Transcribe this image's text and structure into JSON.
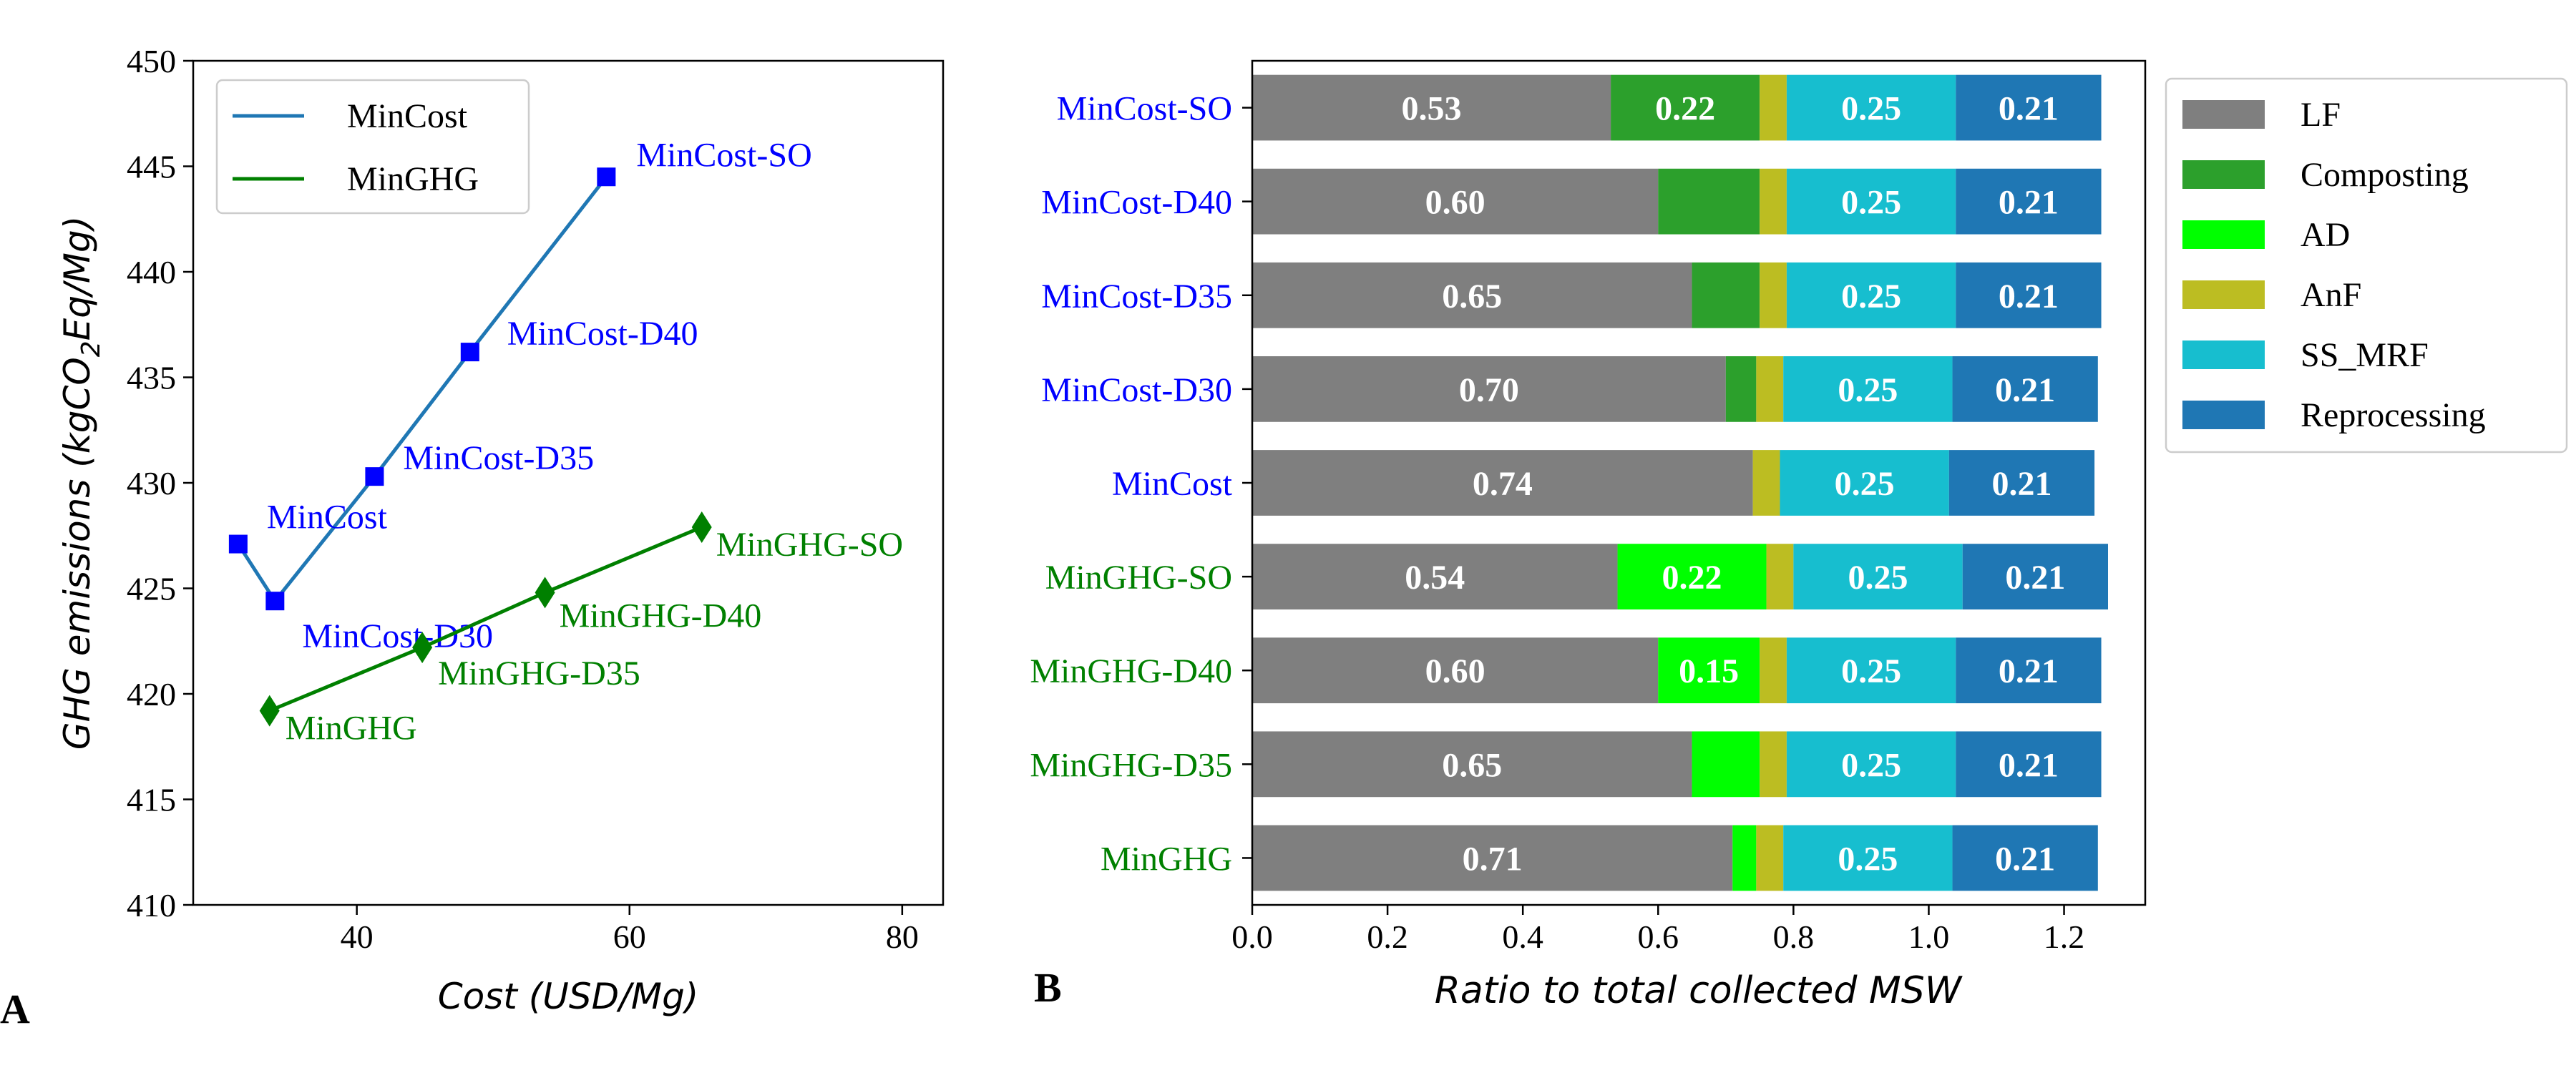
{
  "panel_labels": {
    "a": "A",
    "b": "B"
  },
  "chart_data": [
    {
      "type": "scatter",
      "panel": "A",
      "title": "",
      "xlabel": "Cost (USD/Mg)",
      "ylabel": "GHG emissions (kgCO2Eq/Mg)",
      "ylabel_parts": {
        "pre": "GHG emissions (kgCO",
        "sub": "2",
        "post": "Eq/Mg)"
      },
      "xlim": [
        28,
        83
      ],
      "ylim": [
        410,
        450
      ],
      "xticks": [
        "40",
        "60",
        "80"
      ],
      "xtick_values": [
        40,
        60,
        80
      ],
      "yticks": [
        "410",
        "415",
        "420",
        "425",
        "430",
        "435",
        "440",
        "445",
        "450"
      ],
      "ytick_values": [
        410,
        415,
        420,
        425,
        430,
        435,
        440,
        445,
        450
      ],
      "grid": false,
      "legend_position": "upper-left",
      "series": [
        {
          "name": "MinCost",
          "color": "#1f77b4",
          "label_color": "#0000ff",
          "marker": "square",
          "marker_color": "#0000ff",
          "points": [
            {
              "x": 31.3,
              "y": 427.1,
              "label": "MinCost"
            },
            {
              "x": 34.0,
              "y": 424.4,
              "label": "MinCost-D30"
            },
            {
              "x": 41.3,
              "y": 430.3,
              "label": "MinCost-D35"
            },
            {
              "x": 48.3,
              "y": 436.2,
              "label": "MinCost-D40"
            },
            {
              "x": 58.3,
              "y": 444.5,
              "label": "MinCost-SO"
            }
          ]
        },
        {
          "name": "MinGHG",
          "color": "#008000",
          "label_color": "#008000",
          "marker": "diamond",
          "marker_color": "#008000",
          "points": [
            {
              "x": 33.6,
              "y": 419.2,
              "label": "MinGHG"
            },
            {
              "x": 44.8,
              "y": 422.2,
              "label": "MinGHG-D35"
            },
            {
              "x": 53.8,
              "y": 424.8,
              "label": "MinGHG-D40"
            },
            {
              "x": 65.3,
              "y": 427.9,
              "label": "MinGHG-SO"
            }
          ]
        }
      ]
    },
    {
      "type": "bar",
      "orientation": "horizontal",
      "stacked": true,
      "panel": "B",
      "title": "",
      "xlabel": "Ratio to total collected MSW",
      "xlim": [
        0,
        1.32
      ],
      "xticks": [
        "0.0",
        "0.2",
        "0.4",
        "0.6",
        "0.8",
        "1.0",
        "1.2"
      ],
      "xtick_values": [
        0,
        0.2,
        0.4,
        0.6,
        0.8,
        1.0,
        1.2
      ],
      "grid": false,
      "legend_position": "outside-right",
      "categories": [
        "MinCost-SO",
        "MinCost-D40",
        "MinCost-D35",
        "MinCost-D30",
        "MinCost",
        "MinGHG-SO",
        "MinGHG-D40",
        "MinGHG-D35",
        "MinGHG"
      ],
      "category_colors": [
        "#0000ff",
        "#0000ff",
        "#0000ff",
        "#0000ff",
        "#0000ff",
        "#008000",
        "#008000",
        "#008000",
        "#008000"
      ],
      "series": [
        {
          "name": "LF",
          "color": "#7f7f7f",
          "values": [
            0.53,
            0.6,
            0.65,
            0.7,
            0.74,
            0.54,
            0.6,
            0.65,
            0.71
          ]
        },
        {
          "name": "Composting",
          "color": "#2ca02c",
          "values": [
            0.22,
            0.15,
            0.1,
            0.045,
            0,
            0,
            0,
            0,
            0
          ]
        },
        {
          "name": "AD",
          "color": "#00ff00",
          "values": [
            0,
            0,
            0,
            0,
            0,
            0.22,
            0.15,
            0.1,
            0.035
          ]
        },
        {
          "name": "AnF",
          "color": "#bcbd22",
          "values": [
            0.04,
            0.04,
            0.04,
            0.04,
            0.04,
            0.04,
            0.04,
            0.04,
            0.04
          ]
        },
        {
          "name": "SS_MRF",
          "color": "#17becf",
          "values": [
            0.25,
            0.25,
            0.25,
            0.25,
            0.25,
            0.25,
            0.25,
            0.25,
            0.25
          ]
        },
        {
          "name": "Reprocessing",
          "color": "#1f77b4",
          "values": [
            0.215,
            0.215,
            0.215,
            0.215,
            0.215,
            0.215,
            0.215,
            0.215,
            0.215
          ]
        }
      ],
      "data_labels": [
        [
          "0.53",
          "0.22",
          null,
          null,
          "0.25",
          "0.21"
        ],
        [
          "0.60",
          null,
          null,
          null,
          "0.25",
          "0.21"
        ],
        [
          "0.65",
          null,
          null,
          null,
          "0.25",
          "0.21"
        ],
        [
          "0.70",
          null,
          null,
          null,
          "0.25",
          "0.21"
        ],
        [
          "0.74",
          null,
          null,
          null,
          "0.25",
          "0.21"
        ],
        [
          "0.54",
          null,
          "0.22",
          null,
          "0.25",
          "0.21"
        ],
        [
          "0.60",
          null,
          "0.15",
          null,
          "0.25",
          "0.21"
        ],
        [
          "0.65",
          null,
          null,
          null,
          "0.25",
          "0.21"
        ],
        [
          "0.71",
          null,
          null,
          null,
          "0.25",
          "0.21"
        ]
      ]
    }
  ]
}
